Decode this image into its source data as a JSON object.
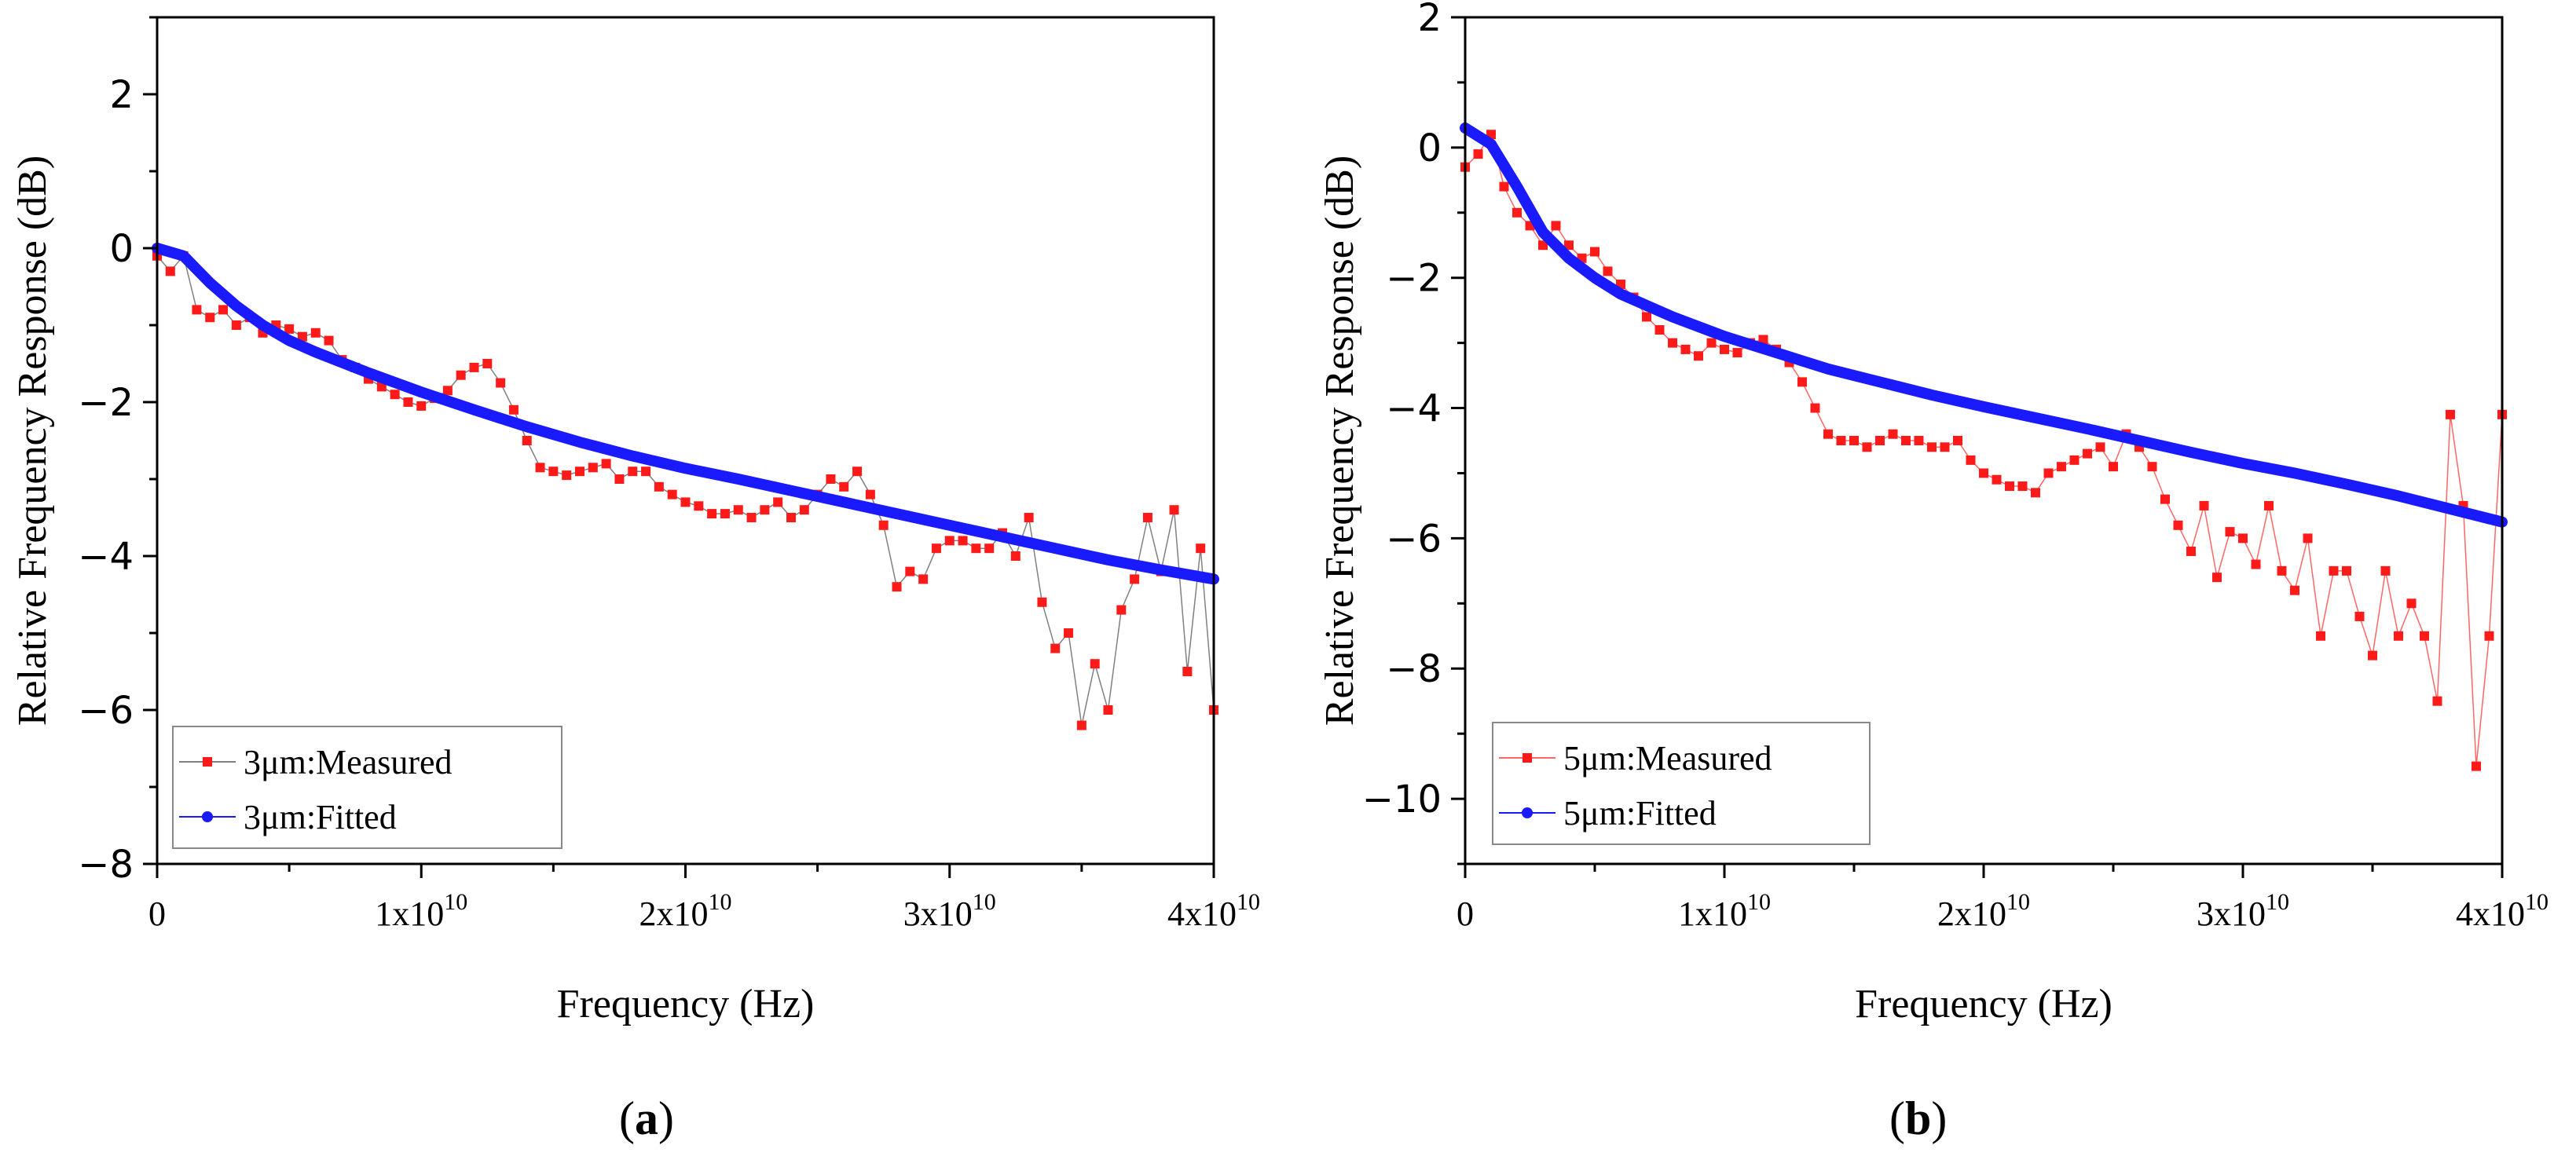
{
  "figure": {
    "panel_labels": [
      "(a)",
      "(b)"
    ]
  },
  "chart_data": [
    {
      "panel": "(a)",
      "type": "line",
      "title": "",
      "xlabel": "Frequency (Hz)",
      "ylabel": "Relative Frequency Response (dB)",
      "xlim": [
        0,
        40000000000
      ],
      "ylim": [
        -8,
        3
      ],
      "xticks": [
        {
          "value": 0,
          "base": "0",
          "exp": ""
        },
        {
          "value": 10000000000,
          "base": "1x10",
          "exp": "10"
        },
        {
          "value": 20000000000,
          "base": "2x10",
          "exp": "10"
        },
        {
          "value": 30000000000,
          "base": "3x10",
          "exp": "10"
        },
        {
          "value": 40000000000,
          "base": "4x10",
          "exp": "10"
        }
      ],
      "yticks": [
        {
          "value": 2,
          "label": "2"
        },
        {
          "value": 0,
          "label": "0"
        },
        {
          "value": -2,
          "label": "−2"
        },
        {
          "value": -4,
          "label": "−4"
        },
        {
          "value": -6,
          "label": "−6"
        },
        {
          "value": -8,
          "label": "−8"
        }
      ],
      "legend_position": "bottom-left",
      "measured_line_color": "#808080",
      "series": [
        {
          "name": "3μm:Measured",
          "color": "#ff1a1a",
          "marker": "square",
          "line": "thin-gray",
          "x_unit": "GHz",
          "x": [
            0.0,
            0.5,
            1.0,
            1.5,
            2.0,
            2.5,
            3.0,
            3.5,
            4.0,
            4.5,
            5.0,
            5.5,
            6.0,
            6.5,
            7.0,
            7.5,
            8.0,
            8.5,
            9.0,
            9.5,
            10.0,
            10.5,
            11.0,
            11.5,
            12.0,
            12.5,
            13.0,
            13.5,
            14.0,
            14.5,
            15.0,
            15.5,
            16.0,
            16.5,
            17.0,
            17.5,
            18.0,
            18.5,
            19.0,
            19.5,
            20.0,
            20.5,
            21.0,
            21.5,
            22.0,
            22.5,
            23.0,
            23.5,
            24.0,
            24.5,
            25.0,
            25.5,
            26.0,
            26.5,
            27.0,
            27.5,
            28.0,
            28.5,
            29.0,
            29.5,
            30.0,
            30.5,
            31.0,
            31.5,
            32.0,
            32.5,
            33.0,
            33.5,
            34.0,
            34.5,
            35.0,
            35.5,
            36.0,
            36.5,
            37.0,
            37.5,
            38.0,
            38.5,
            39.0,
            39.5,
            40.0
          ],
          "values": [
            -0.1,
            -0.3,
            -0.1,
            -0.8,
            -0.9,
            -0.8,
            -1.0,
            -0.9,
            -1.1,
            -1.0,
            -1.05,
            -1.15,
            -1.1,
            -1.2,
            -1.45,
            -1.55,
            -1.7,
            -1.8,
            -1.9,
            -2.0,
            -2.05,
            -1.95,
            -1.85,
            -1.65,
            -1.55,
            -1.5,
            -1.75,
            -2.1,
            -2.5,
            -2.85,
            -2.9,
            -2.95,
            -2.9,
            -2.85,
            -2.8,
            -3.0,
            -2.9,
            -2.9,
            -3.1,
            -3.2,
            -3.3,
            -3.35,
            -3.45,
            -3.45,
            -3.4,
            -3.5,
            -3.4,
            -3.3,
            -3.5,
            -3.4,
            -3.2,
            -3.0,
            -3.1,
            -2.9,
            -3.2,
            -3.6,
            -4.4,
            -4.2,
            -4.3,
            -3.9,
            -3.8,
            -3.8,
            -3.9,
            -3.9,
            -3.7,
            -4.0,
            -3.5,
            -4.6,
            -5.2,
            -5.0,
            -6.2,
            -5.4,
            -6.0,
            -4.7,
            -4.3,
            -3.5,
            -4.2,
            -3.4,
            -5.5,
            -3.9,
            -6.0
          ]
        },
        {
          "name": "3μm:Fitted",
          "color": "#1a1aff",
          "marker": "circle",
          "line": "thick",
          "x_unit": "GHz",
          "x": [
            0,
            1,
            2,
            3,
            4,
            5,
            6,
            8,
            10,
            12,
            14,
            16,
            18,
            20,
            22,
            24,
            26,
            28,
            30,
            32,
            34,
            36,
            38,
            40
          ],
          "values": [
            0.0,
            -0.1,
            -0.45,
            -0.75,
            -1.0,
            -1.2,
            -1.35,
            -1.62,
            -1.87,
            -2.1,
            -2.32,
            -2.52,
            -2.7,
            -2.86,
            -3.0,
            -3.15,
            -3.3,
            -3.45,
            -3.6,
            -3.75,
            -3.9,
            -4.05,
            -4.18,
            -4.3
          ]
        }
      ]
    },
    {
      "panel": "(b)",
      "type": "line",
      "title": "",
      "xlabel": "Frequency (Hz)",
      "ylabel": "Relative Frequency Response (dB)",
      "xlim": [
        0,
        40000000000
      ],
      "ylim": [
        -11,
        2
      ],
      "xticks": [
        {
          "value": 0,
          "base": "0",
          "exp": ""
        },
        {
          "value": 10000000000,
          "base": "1x10",
          "exp": "10"
        },
        {
          "value": 20000000000,
          "base": "2x10",
          "exp": "10"
        },
        {
          "value": 30000000000,
          "base": "3x10",
          "exp": "10"
        },
        {
          "value": 40000000000,
          "base": "4x10",
          "exp": "10"
        }
      ],
      "yticks": [
        {
          "value": 2,
          "label": "2"
        },
        {
          "value": 0,
          "label": "0"
        },
        {
          "value": -2,
          "label": "−2"
        },
        {
          "value": -4,
          "label": "−4"
        },
        {
          "value": -6,
          "label": "−6"
        },
        {
          "value": -8,
          "label": "−8"
        },
        {
          "value": -10,
          "label": "−10"
        }
      ],
      "legend_position": "bottom-left",
      "measured_line_color": "#ff6666",
      "series": [
        {
          "name": "5μm:Measured",
          "color": "#ff1a1a",
          "marker": "square",
          "line": "thin-red",
          "x_unit": "GHz",
          "x": [
            0.0,
            0.5,
            1.0,
            1.5,
            2.0,
            2.5,
            3.0,
            3.5,
            4.0,
            4.5,
            5.0,
            5.5,
            6.0,
            6.5,
            7.0,
            7.5,
            8.0,
            8.5,
            9.0,
            9.5,
            10.0,
            10.5,
            11.0,
            11.5,
            12.0,
            12.5,
            13.0,
            13.5,
            14.0,
            14.5,
            15.0,
            15.5,
            16.0,
            16.5,
            17.0,
            17.5,
            18.0,
            18.5,
            19.0,
            19.5,
            20.0,
            20.5,
            21.0,
            21.5,
            22.0,
            22.5,
            23.0,
            23.5,
            24.0,
            24.5,
            25.0,
            25.5,
            26.0,
            26.5,
            27.0,
            27.5,
            28.0,
            28.5,
            29.0,
            29.5,
            30.0,
            30.5,
            31.0,
            31.5,
            32.0,
            32.5,
            33.0,
            33.5,
            34.0,
            34.5,
            35.0,
            35.5,
            36.0,
            36.5,
            37.0,
            37.5,
            38.0,
            38.5,
            39.0,
            39.5,
            40.0
          ],
          "values": [
            -0.3,
            -0.1,
            0.2,
            -0.6,
            -1.0,
            -1.2,
            -1.5,
            -1.2,
            -1.5,
            -1.7,
            -1.6,
            -1.9,
            -2.1,
            -2.3,
            -2.6,
            -2.8,
            -3.0,
            -3.1,
            -3.2,
            -3.0,
            -3.1,
            -3.15,
            -3.0,
            -2.95,
            -3.1,
            -3.3,
            -3.6,
            -4.0,
            -4.4,
            -4.5,
            -4.5,
            -4.6,
            -4.5,
            -4.4,
            -4.5,
            -4.5,
            -4.6,
            -4.6,
            -4.5,
            -4.8,
            -5.0,
            -5.1,
            -5.2,
            -5.2,
            -5.3,
            -5.0,
            -4.9,
            -4.8,
            -4.7,
            -4.6,
            -4.9,
            -4.4,
            -4.6,
            -4.9,
            -5.4,
            -5.8,
            -6.2,
            -5.5,
            -6.6,
            -5.9,
            -6.0,
            -6.4,
            -5.5,
            -6.5,
            -6.8,
            -6.0,
            -7.5,
            -6.5,
            -6.5,
            -7.2,
            -7.8,
            -6.5,
            -7.5,
            -7.0,
            -7.5,
            -8.5,
            -4.1,
            -5.5,
            -9.5,
            -7.5,
            -4.1
          ]
        },
        {
          "name": "5μm:Fitted",
          "color": "#1a1aff",
          "marker": "circle",
          "line": "thick",
          "x_unit": "GHz",
          "x": [
            0,
            1,
            2,
            3,
            4,
            5,
            6,
            8,
            10,
            12,
            14,
            16,
            18,
            20,
            22,
            24,
            26,
            28,
            30,
            32,
            34,
            36,
            38,
            40
          ],
          "values": [
            0.3,
            0.05,
            -0.6,
            -1.3,
            -1.7,
            -2.0,
            -2.25,
            -2.6,
            -2.9,
            -3.15,
            -3.4,
            -3.6,
            -3.8,
            -3.98,
            -4.15,
            -4.32,
            -4.5,
            -4.68,
            -4.85,
            -5.0,
            -5.17,
            -5.35,
            -5.55,
            -5.75
          ]
        }
      ]
    }
  ]
}
